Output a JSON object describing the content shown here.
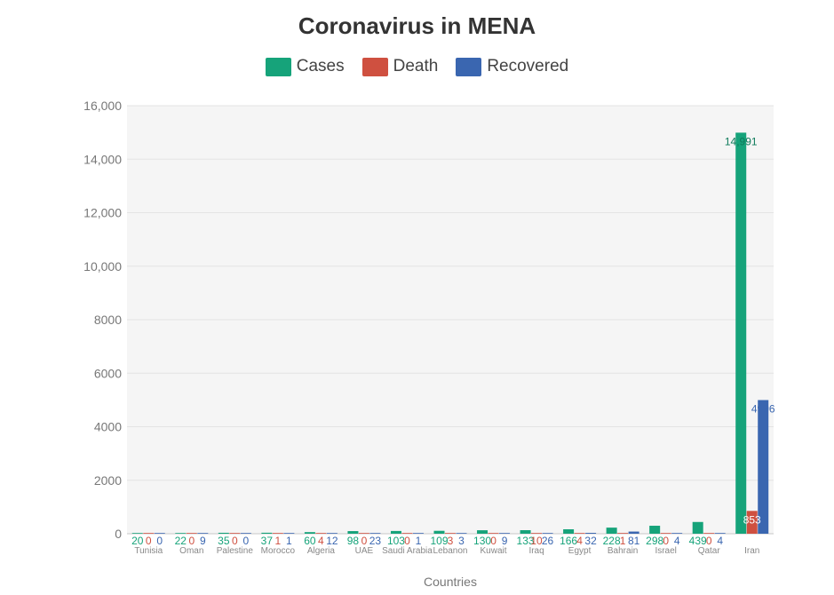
{
  "chart_data": {
    "type": "bar",
    "title": "Coronavirus in MENA",
    "xlabel": "Countries",
    "ylabel": "",
    "ylim": [
      0,
      16000
    ],
    "yticks": [
      "0",
      "2000",
      "4000",
      "6000",
      "8000",
      "10,000",
      "12,000",
      "14,000",
      "16,000"
    ],
    "grid": true,
    "legend_position": "top-center",
    "categories": [
      "Tunisia",
      "Oman",
      "Palestine",
      "Morocco",
      "Algeria",
      "UAE",
      "Saudi Arabia",
      "Lebanon",
      "Kuwait",
      "Iraq",
      "Egypt",
      "Bahrain",
      "Israel",
      "Qatar",
      "Iran"
    ],
    "series": [
      {
        "name": "Cases",
        "color": "#16a37a",
        "values": [
          20,
          22,
          35,
          37,
          60,
          98,
          103,
          109,
          130,
          133,
          166,
          228,
          298,
          439,
          14991
        ],
        "labels": [
          "20",
          "22",
          "35",
          "37",
          "60",
          "98",
          "103",
          "109",
          "130",
          "133",
          "166",
          "228",
          "298",
          "439",
          "14,991"
        ]
      },
      {
        "name": "Death",
        "color": "#cf5040",
        "values": [
          0,
          0,
          0,
          1,
          4,
          0,
          0,
          3,
          0,
          10,
          4,
          1,
          0,
          0,
          853
        ],
        "labels": [
          "0",
          "0",
          "0",
          "1",
          "4",
          "0",
          "0",
          "3",
          "0",
          "10",
          "4",
          "1",
          "0",
          "0",
          "853"
        ]
      },
      {
        "name": "Recovered",
        "color": "#3a66b0",
        "values": [
          0,
          9,
          0,
          1,
          12,
          23,
          1,
          3,
          9,
          26,
          32,
          81,
          4,
          4,
          4996
        ],
        "labels": [
          "0",
          "9",
          "0",
          "1",
          "12",
          "23",
          "1",
          "3",
          "9",
          "26",
          "32",
          "81",
          "4",
          "4",
          "4996"
        ]
      }
    ]
  }
}
